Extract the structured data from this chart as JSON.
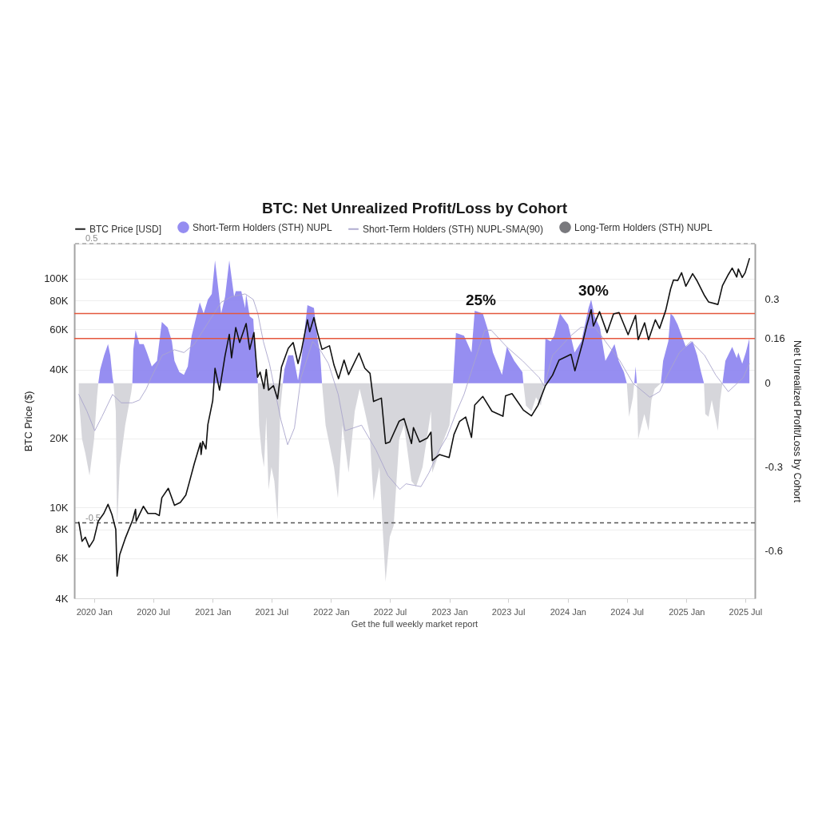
{
  "chart_data": {
    "type": "line",
    "title": "BTC: Net Unrealized Profit/Loss by Cohort",
    "ylabel": "BTC Price ($)",
    "y2label": "Net Unrealized Profit/Loss by Cohort",
    "xlim": [
      "2019-11-01",
      "2025-07-31"
    ],
    "xticks": [
      {
        "value": "2020-01",
        "label": "2020 Jan"
      },
      {
        "value": "2020-07",
        "label": "2020 Jul"
      },
      {
        "value": "2021-01",
        "label": "2021 Jan"
      },
      {
        "value": "2021-07",
        "label": "2021 Jul"
      },
      {
        "value": "2022-01",
        "label": "2022 Jan"
      },
      {
        "value": "2022-07",
        "label": "2022 Jul"
      },
      {
        "value": "2023-01",
        "label": "2023 Jan"
      },
      {
        "value": "2023-07",
        "label": "2023 Jul"
      },
      {
        "value": "2024-01",
        "label": "2024 Jan"
      },
      {
        "value": "2024-07",
        "label": "2024 Jul"
      },
      {
        "value": "2025-01",
        "label": "2025 Jan"
      },
      {
        "value": "2025-07",
        "label": "2025 Jul"
      }
    ],
    "ylim": [
      4000,
      142000
    ],
    "yticks": [
      {
        "value": 4000,
        "label": "4K"
      },
      {
        "value": 6000,
        "label": "6K"
      },
      {
        "value": 8000,
        "label": "8K"
      },
      {
        "value": 10000,
        "label": "10K"
      },
      {
        "value": 20000,
        "label": "20K"
      },
      {
        "value": 40000,
        "label": "40K"
      },
      {
        "value": 60000,
        "label": "60K"
      },
      {
        "value": 80000,
        "label": "80K"
      },
      {
        "value": 100000,
        "label": "100K"
      }
    ],
    "y2lim": [
      -0.77,
      0.5
    ],
    "y2ticks": [
      -0.6,
      -0.3,
      0,
      0.16,
      0.3
    ],
    "log": "y",
    "grid": "y",
    "legend": "top",
    "series": [
      {
        "name": "BTC Price [USD]",
        "color": "#111111",
        "x": [
          "2019-11-15",
          "2019-11-25",
          "2019-12-05",
          "2019-12-17",
          "2019-12-31",
          "2020-01-14",
          "2020-01-31",
          "2020-02-13",
          "2020-02-25",
          "2020-03-08",
          "2020-03-12",
          "2020-03-20",
          "2020-04-06",
          "2020-04-29",
          "2020-05-08",
          "2020-05-10",
          "2020-06-01",
          "2020-06-15",
          "2020-07-08",
          "2020-07-20",
          "2020-07-28",
          "2020-08-17",
          "2020-09-05",
          "2020-09-23",
          "2020-10-10",
          "2020-10-21",
          "2020-11-05",
          "2020-11-24",
          "2020-11-26",
          "2020-12-01",
          "2020-12-11",
          "2020-12-17",
          "2021-01-01",
          "2021-01-08",
          "2021-01-22",
          "2021-02-08",
          "2021-02-21",
          "2021-02-28",
          "2021-03-13",
          "2021-03-25",
          "2021-04-14",
          "2021-04-25",
          "2021-05-08",
          "2021-05-19",
          "2021-05-27",
          "2021-06-08",
          "2021-06-15",
          "2021-06-22",
          "2021-07-07",
          "2021-07-20",
          "2021-08-01",
          "2021-08-22",
          "2021-09-06",
          "2021-09-21",
          "2021-10-01",
          "2021-10-20",
          "2021-10-27",
          "2021-11-09",
          "2021-11-20",
          "2021-12-04",
          "2021-12-27",
          "2022-01-10",
          "2022-01-24",
          "2022-02-10",
          "2022-02-24",
          "2022-03-28",
          "2022-04-15",
          "2022-05-01",
          "2022-05-12",
          "2022-06-05",
          "2022-06-18",
          "2022-07-01",
          "2022-07-30",
          "2022-08-14",
          "2022-09-06",
          "2022-09-12",
          "2022-10-01",
          "2022-10-25",
          "2022-11-05",
          "2022-11-09",
          "2022-12-01",
          "2022-12-31",
          "2023-01-15",
          "2023-02-01",
          "2023-02-20",
          "2023-03-10",
          "2023-03-20",
          "2023-04-14",
          "2023-05-12",
          "2023-06-15",
          "2023-06-23",
          "2023-07-13",
          "2023-08-17",
          "2023-09-11",
          "2023-10-01",
          "2023-10-24",
          "2023-11-15",
          "2023-12-05",
          "2024-01-11",
          "2024-01-23",
          "2024-02-15",
          "2024-02-28",
          "2024-03-13",
          "2024-03-20",
          "2024-04-08",
          "2024-05-01",
          "2024-05-21",
          "2024-06-07",
          "2024-07-05",
          "2024-07-28",
          "2024-08-05",
          "2024-08-25",
          "2024-09-06",
          "2024-09-27",
          "2024-10-10",
          "2024-10-29",
          "2024-11-13",
          "2024-11-22",
          "2024-12-05",
          "2024-12-17",
          "2024-12-30",
          "2025-01-20",
          "2025-02-03",
          "2025-02-26",
          "2025-03-10",
          "2025-04-08",
          "2025-04-22",
          "2025-05-10",
          "2025-05-22",
          "2025-06-05",
          "2025-06-10",
          "2025-06-22",
          "2025-07-01",
          "2025-07-14"
        ],
        "values": [
          8600,
          7100,
          7400,
          6700,
          7200,
          8700,
          9400,
          10300,
          9300,
          8000,
          5000,
          6200,
          7300,
          8800,
          9800,
          8700,
          10100,
          9400,
          9400,
          9200,
          11000,
          12100,
          10200,
          10500,
          11300,
          12900,
          15500,
          19100,
          17000,
          19400,
          18000,
          23000,
          29300,
          40500,
          32500,
          46000,
          57000,
          45000,
          61000,
          52500,
          63500,
          49000,
          58000,
          37000,
          39000,
          33000,
          40000,
          32500,
          34000,
          29800,
          41000,
          49500,
          52500,
          42500,
          48000,
          66000,
          58500,
          67500,
          58000,
          49000,
          50800,
          41800,
          36500,
          44000,
          38000,
          47200,
          40500,
          38500,
          29000,
          30000,
          19000,
          19300,
          23800,
          24400,
          19000,
          22300,
          19300,
          20100,
          21300,
          16000,
          17000,
          16500,
          20800,
          23700,
          24800,
          20200,
          28000,
          30500,
          26300,
          25000,
          30700,
          31400,
          26600,
          25100,
          27900,
          34000,
          37800,
          44000,
          46600,
          39500,
          52000,
          62000,
          73000,
          62000,
          71600,
          58000,
          70000,
          71000,
          56800,
          69000,
          54000,
          64000,
          54000,
          66000,
          60500,
          72500,
          90000,
          98500,
          98000,
          106000,
          92500,
          105000,
          97500,
          84000,
          79000,
          77000,
          93000,
          104000,
          111000,
          101500,
          110000,
          101000,
          106000,
          122000
        ]
      },
      {
        "name": "Short-Term Holders (STH) NUPL",
        "type": "area",
        "color": "#8d84f0",
        "axis": "y2",
        "x": [
          "2020-01-14",
          "2020-01-20",
          "2020-02-01",
          "2020-02-13",
          "2020-02-20",
          "2020-02-27",
          "2020-03-01",
          "2020-04-28",
          "2020-05-01",
          "2020-05-08",
          "2020-05-20",
          "2020-06-02",
          "2020-06-12",
          "2020-06-27",
          "2020-07-13",
          "2020-07-28",
          "2020-08-15",
          "2020-08-28",
          "2020-09-05",
          "2020-09-20",
          "2020-10-04",
          "2020-10-16",
          "2020-10-28",
          "2020-11-22",
          "2020-12-04",
          "2020-12-17",
          "2020-12-29",
          "2021-01-08",
          "2021-01-15",
          "2021-01-27",
          "2021-02-08",
          "2021-02-21",
          "2021-03-08",
          "2021-03-13",
          "2021-03-30",
          "2021-04-11",
          "2021-04-14",
          "2021-04-25",
          "2021-05-06",
          "2021-05-10",
          "2021-05-17",
          "2021-05-20",
          "2021-08-05",
          "2021-08-10",
          "2021-08-22",
          "2021-09-06",
          "2021-09-21",
          "2021-10-01",
          "2021-10-20",
          "2021-11-09",
          "2021-11-20",
          "2021-11-28",
          "2021-12-04",
          "2023-01-12",
          "2023-01-21",
          "2023-02-15",
          "2023-03-10",
          "2023-03-20",
          "2023-04-14",
          "2023-04-30",
          "2023-05-15",
          "2023-06-12",
          "2023-06-27",
          "2023-07-20",
          "2023-08-14",
          "2023-08-17",
          "2023-10-20",
          "2023-10-24",
          "2023-11-09",
          "2023-11-20",
          "2023-12-08",
          "2024-01-02",
          "2024-01-22",
          "2024-02-12",
          "2024-03-05",
          "2024-03-13",
          "2024-03-24",
          "2024-04-09",
          "2024-04-26",
          "2024-05-24",
          "2024-06-06",
          "2024-06-22",
          "2024-07-01",
          "2024-07-24",
          "2024-07-28",
          "2024-08-01",
          "2024-10-14",
          "2024-10-21",
          "2024-11-06",
          "2024-11-13",
          "2024-11-22",
          "2024-12-05",
          "2024-12-30",
          "2025-01-20",
          "2025-02-03",
          "2025-02-15",
          "2025-02-24",
          "2025-04-22",
          "2025-05-01",
          "2025-05-22",
          "2025-06-05",
          "2025-06-10",
          "2025-06-22",
          "2025-07-03",
          "2025-07-14"
        ],
        "values": [
          0,
          0.05,
          0.1,
          0.14,
          0.1,
          0.02,
          0,
          0,
          0.12,
          0.19,
          0.14,
          0.14,
          0.11,
          0.06,
          0.08,
          0.22,
          0.2,
          0.15,
          0.08,
          0.04,
          0.03,
          0.06,
          0.17,
          0.29,
          0.25,
          0.3,
          0.32,
          0.44,
          0.37,
          0.25,
          0.31,
          0.44,
          0.31,
          0.33,
          0.33,
          0.27,
          0.32,
          0.24,
          0.23,
          0.15,
          0.04,
          0,
          0,
          0.05,
          0.1,
          0.1,
          0.01,
          0.08,
          0.28,
          0.27,
          0.16,
          0.11,
          0,
          0,
          0.18,
          0.17,
          0.11,
          0.26,
          0.25,
          0.19,
          0.11,
          0.03,
          0.13,
          0.08,
          0.04,
          0,
          0,
          0.16,
          0.15,
          0.17,
          0.25,
          0.21,
          0.11,
          0.15,
          0.27,
          0.3,
          0.24,
          0.2,
          0.08,
          0.14,
          0.08,
          0.04,
          0,
          0,
          0.06,
          0,
          0,
          0.08,
          0.15,
          0.25,
          0.24,
          0.21,
          0.13,
          0.15,
          0.1,
          0.04,
          0,
          0,
          0.08,
          0.13,
          0.09,
          0.11,
          0.07,
          0.11,
          0.16
        ]
      },
      {
        "name": "Short-Term Holders (STH) NUPL-SMA(90)",
        "color": "#a9a5cc",
        "axis": "y2",
        "x": [
          "2019-11-15",
          "2019-12-10",
          "2020-01-03",
          "2020-01-25",
          "2020-02-27",
          "2020-03-25",
          "2020-04-28",
          "2020-05-20",
          "2020-06-10",
          "2020-06-25",
          "2020-07-29",
          "2020-09-05",
          "2020-10-04",
          "2020-11-05",
          "2020-12-25",
          "2021-01-27",
          "2021-02-28",
          "2021-04-11",
          "2021-05-06",
          "2021-05-20",
          "2021-06-06",
          "2021-06-25",
          "2021-07-30",
          "2021-08-20",
          "2021-09-10",
          "2021-09-30",
          "2021-11-05",
          "2021-11-28",
          "2021-12-24",
          "2022-01-23",
          "2022-02-13",
          "2022-04-05",
          "2022-05-20",
          "2022-06-25",
          "2022-08-01",
          "2022-08-20",
          "2022-10-05",
          "2022-10-30",
          "2022-11-30",
          "2022-12-25",
          "2023-01-20",
          "2023-02-15",
          "2023-03-20",
          "2023-04-20",
          "2023-05-10",
          "2023-06-27",
          "2023-08-15",
          "2023-10-05",
          "2023-10-20",
          "2023-11-15",
          "2024-01-10",
          "2024-02-10",
          "2024-03-25",
          "2024-04-26",
          "2024-06-10",
          "2024-07-20",
          "2024-09-10",
          "2024-10-10",
          "2024-10-30",
          "2024-12-10",
          "2025-01-15",
          "2025-02-26",
          "2025-04-01",
          "2025-05-10",
          "2025-06-25",
          "2025-07-14"
        ],
        "values": [
          -0.04,
          -0.1,
          -0.17,
          -0.12,
          -0.04,
          -0.07,
          -0.07,
          -0.06,
          -0.02,
          0.02,
          0.1,
          0.12,
          0.11,
          0.14,
          0.23,
          0.29,
          0.31,
          0.32,
          0.3,
          0.25,
          0.15,
          0.07,
          -0.13,
          -0.22,
          -0.16,
          0.02,
          0.15,
          0.12,
          0.07,
          -0.04,
          -0.17,
          -0.15,
          -0.24,
          -0.33,
          -0.38,
          -0.36,
          -0.37,
          -0.32,
          -0.24,
          -0.19,
          -0.11,
          -0.04,
          0.08,
          0.19,
          0.19,
          0.13,
          0.08,
          0.02,
          -0.01,
          0.1,
          0.17,
          0.2,
          0.2,
          0.15,
          0.08,
          0,
          -0.05,
          -0.03,
          0.02,
          0.11,
          0.15,
          0.1,
          0.03,
          -0.03,
          0.02,
          0.07
        ]
      },
      {
        "name": "Long-Term Holders (STH) NUPL",
        "type": "area",
        "color": "#6e6e73",
        "axis": "y2"
      },
      {
        "type": "area",
        "color": "#d2d2d8",
        "axis": "y2",
        "x": [
          "2019-11-15",
          "2019-11-25",
          "2019-12-05",
          "2019-12-18",
          "2020-01-01",
          "2020-01-10",
          "2020-01-14",
          "2020-03-01",
          "2020-03-08",
          "2020-03-12",
          "2020-03-20",
          "2020-04-06",
          "2020-04-25",
          "2020-04-28",
          "2021-05-20",
          "2021-05-24",
          "2021-06-01",
          "2021-06-08",
          "2021-06-15",
          "2021-06-22",
          "2021-07-01",
          "2021-07-10",
          "2021-07-20",
          "2021-07-28",
          "2021-08-05",
          "2021-12-04",
          "2021-12-15",
          "2022-01-10",
          "2022-01-22",
          "2022-02-05",
          "2022-02-24",
          "2022-03-15",
          "2022-03-30",
          "2022-04-15",
          "2022-04-30",
          "2022-05-12",
          "2022-05-30",
          "2022-06-18",
          "2022-07-01",
          "2022-07-13",
          "2022-07-30",
          "2022-08-14",
          "2022-09-06",
          "2022-09-20",
          "2022-10-10",
          "2022-11-05",
          "2022-11-09",
          "2022-11-21",
          "2022-12-15",
          "2023-01-01",
          "2023-01-12",
          "2023-08-17",
          "2023-08-25",
          "2023-09-11",
          "2023-09-25",
          "2023-10-10",
          "2023-10-20",
          "2024-07-01",
          "2024-07-08",
          "2024-07-20",
          "2024-07-24",
          "2024-08-01",
          "2024-08-05",
          "2024-08-24",
          "2024-09-06",
          "2024-09-15",
          "2024-09-25",
          "2024-10-14",
          "2025-02-24",
          "2025-02-28",
          "2025-03-10",
          "2025-03-20",
          "2025-04-08",
          "2025-04-15",
          "2025-04-22"
        ],
        "values": [
          -0.05,
          -0.2,
          -0.25,
          -0.33,
          -0.2,
          -0.05,
          0,
          0,
          -0.1,
          -0.52,
          -0.3,
          -0.15,
          -0.03,
          0,
          0,
          -0.15,
          -0.25,
          -0.3,
          -0.12,
          -0.38,
          -0.3,
          -0.35,
          -0.49,
          -0.1,
          0,
          0,
          -0.15,
          -0.3,
          -0.41,
          -0.15,
          -0.32,
          -0.1,
          -0.02,
          -0.1,
          -0.18,
          -0.42,
          -0.3,
          -0.71,
          -0.55,
          -0.51,
          -0.2,
          -0.15,
          -0.35,
          -0.37,
          -0.3,
          -0.1,
          -0.32,
          -0.28,
          -0.2,
          -0.15,
          0,
          0,
          -0.08,
          -0.1,
          -0.05,
          -0.08,
          0,
          0,
          -0.12,
          -0.05,
          0,
          0,
          -0.2,
          -0.11,
          -0.17,
          -0.06,
          -0.02,
          0,
          0,
          -0.11,
          -0.12,
          -0.06,
          -0.17,
          -0.06,
          0
        ]
      }
    ],
    "ref_lines": [
      {
        "axis": "y2",
        "value": 0.5,
        "label": "0.5",
        "color": "#a8a8a8",
        "line_style": "dashed"
      },
      {
        "axis": "y2",
        "value": -0.5,
        "label": "-0.5",
        "color": "#555555",
        "line_style": "dashed"
      },
      {
        "axis": "y2",
        "value": 0.25,
        "color": "#e4573d"
      },
      {
        "axis": "y2",
        "value": 0.16,
        "color": "#e4573d"
      }
    ],
    "annotations": [
      "25%",
      "30%",
      "Get the full weekly market report"
    ]
  }
}
